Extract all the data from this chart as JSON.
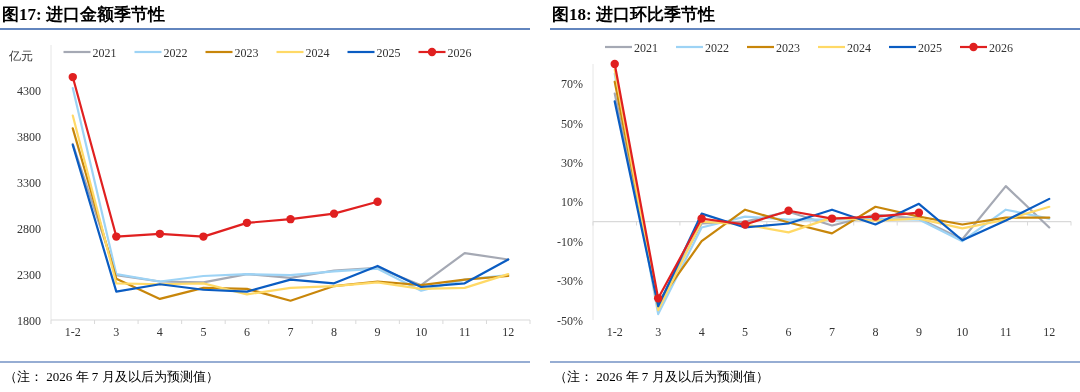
{
  "chart_data": [
    {
      "type": "line",
      "title": "图17: 进口金额季节性",
      "ylabel": "亿元",
      "annotations": [
        "（注： 2026 年 7 月及以后为预测值）"
      ],
      "categories": [
        "1-2",
        "3",
        "4",
        "5",
        "6",
        "7",
        "8",
        "9",
        "10",
        "11",
        "12"
      ],
      "ylim": [
        1800,
        4800
      ],
      "yticks": [
        1800,
        2300,
        2800,
        3300,
        3800,
        4300
      ],
      "legend": "top",
      "series": [
        {
          "name": "2021",
          "color": "#a5a9b4",
          "values": [
            3720,
            2290,
            2220,
            2210,
            2300,
            2260,
            2340,
            2370,
            2180,
            2530,
            2460
          ]
        },
        {
          "name": "2022",
          "color": "#9dd3f5",
          "values": [
            4330,
            2300,
            2220,
            2280,
            2300,
            2290,
            2330,
            2360,
            2120,
            2240,
            2290
          ]
        },
        {
          "name": "2023",
          "color": "#c8860a",
          "values": [
            3890,
            2250,
            2030,
            2150,
            2140,
            2010,
            2170,
            2220,
            2180,
            2240,
            2280
          ]
        },
        {
          "name": "2024",
          "color": "#ffd966",
          "values": [
            4030,
            2200,
            2190,
            2200,
            2080,
            2150,
            2170,
            2210,
            2140,
            2150,
            2300
          ]
        },
        {
          "name": "2025",
          "color": "#0a5cc2",
          "values": [
            3710,
            2110,
            2190,
            2130,
            2110,
            2240,
            2200,
            2390,
            2160,
            2200,
            2460
          ]
        },
        {
          "name": "2026",
          "color": "#e02020",
          "marker": "circle",
          "values": [
            4450,
            2710,
            2740,
            2710,
            2860,
            2900,
            2960,
            3090,
            null,
            null,
            null
          ]
        }
      ]
    },
    {
      "type": "line",
      "title": "图18: 进口环比季节性",
      "annotations": [
        "（注： 2026 年 7 月及以后为预测值）"
      ],
      "categories": [
        "1-2",
        "3",
        "4",
        "5",
        "6",
        "7",
        "8",
        "9",
        "10",
        "11",
        "12"
      ],
      "ylim": [
        -50,
        80
      ],
      "yticks": [
        {
          "value": -50,
          "label": "-50%"
        },
        {
          "value": -30,
          "label": "-30%"
        },
        {
          "value": -10,
          "label": "-10%"
        },
        {
          "value": 10,
          "label": "10%"
        },
        {
          "value": 30,
          "label": "30%"
        },
        {
          "value": 50,
          "label": "50%"
        },
        {
          "value": 70,
          "label": "70%"
        }
      ],
      "legend": "top",
      "series": [
        {
          "name": "2021",
          "color": "#a5a9b4",
          "values": [
            65,
            -42,
            -1,
            0,
            5,
            -2,
            3.5,
            1.5,
            -9,
            18,
            -3
          ]
        },
        {
          "name": "2022",
          "color": "#9dd3f5",
          "values": [
            75,
            -47,
            -3,
            2.5,
            1,
            1,
            1.5,
            1,
            -10,
            6,
            1.5
          ]
        },
        {
          "name": "2023",
          "color": "#c8860a",
          "values": [
            71,
            -41,
            -10,
            6,
            -0.5,
            -6,
            7.5,
            2.5,
            -1.5,
            2,
            2
          ]
        },
        {
          "name": "2024",
          "color": "#ffd966",
          "values": [
            77,
            -45,
            0,
            -1.5,
            -5.5,
            2,
            0.5,
            1.5,
            -3.5,
            1,
            7.5
          ]
        },
        {
          "name": "2025",
          "color": "#0a5cc2",
          "values": [
            61,
            -43,
            4,
            -3,
            -1,
            6,
            -1.5,
            9,
            -9.5,
            0.5,
            11.5
          ]
        },
        {
          "name": "2026",
          "color": "#e02020",
          "marker": "circle",
          "values": [
            80,
            -39,
            1.5,
            -1.5,
            5.5,
            1.5,
            2.5,
            4.5,
            null,
            null,
            null
          ]
        }
      ]
    }
  ]
}
